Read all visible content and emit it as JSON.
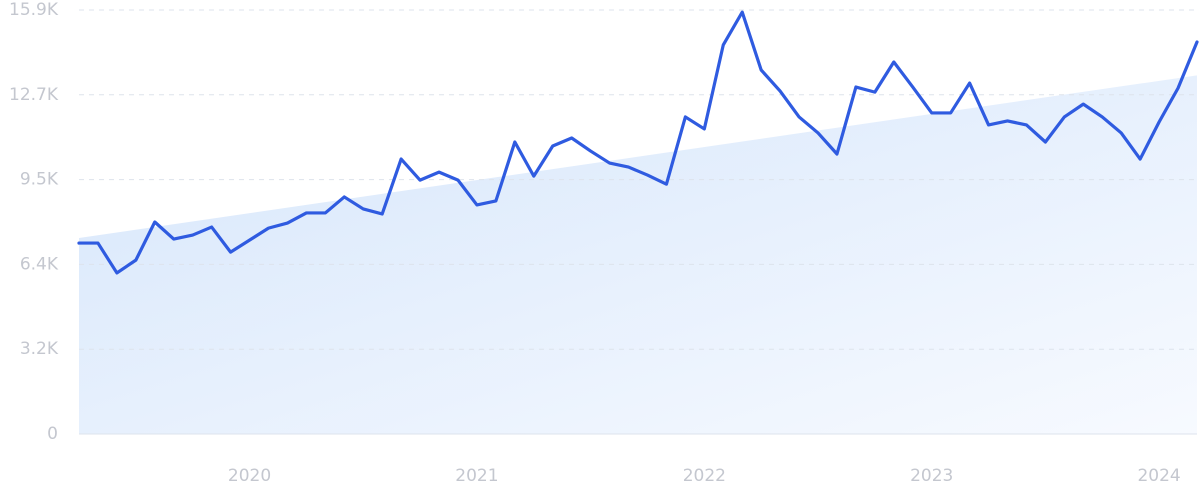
{
  "chart_data": {
    "type": "line",
    "categories": [
      null,
      null,
      null,
      null,
      null,
      null,
      null,
      null,
      null,
      "2020",
      null,
      null,
      null,
      null,
      null,
      null,
      null,
      null,
      null,
      null,
      null,
      "2021",
      null,
      null,
      null,
      null,
      null,
      null,
      null,
      null,
      null,
      null,
      null,
      "2022",
      null,
      null,
      null,
      null,
      null,
      null,
      null,
      null,
      null,
      null,
      null,
      "2023",
      null,
      null,
      null,
      null,
      null,
      null,
      null,
      null,
      null,
      null,
      null,
      "2024",
      null,
      null
    ],
    "series": [
      {
        "color": "#2f5be0",
        "values": [
          7160,
          7160,
          6040,
          6520,
          7950,
          7310,
          7460,
          7760,
          6820,
          7270,
          7720,
          7910,
          8290,
          8290,
          8890,
          8440,
          8250,
          10310,
          9520,
          9820,
          9520,
          8590,
          8740,
          10950,
          9670,
          10800,
          11100,
          10610,
          10160,
          10010,
          9710,
          9370,
          11890,
          11440,
          14590,
          15820,
          13650,
          12860,
          11890,
          11290,
          10500,
          13010,
          12820,
          13950,
          13010,
          12040,
          12040,
          13160,
          11590,
          11740,
          11590,
          10950,
          11890,
          12370,
          11890,
          11290,
          10310,
          11700,
          12970,
          14700
        ]
      }
    ],
    "trend": [
      7350,
      13450
    ],
    "ylim": [
      0,
      15900
    ],
    "yticks": [
      0,
      {
        "value": 3180,
        "label": "3.2K"
      },
      {
        "value": 6360,
        "label": "6.4K"
      },
      {
        "value": 9540,
        "label": "9.5K"
      },
      {
        "value": 12720,
        "label": "12.7K"
      },
      {
        "value": 15900,
        "label": "15.9K"
      }
    ],
    "grid": true
  }
}
